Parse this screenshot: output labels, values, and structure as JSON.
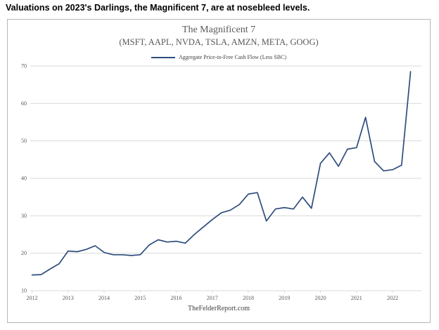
{
  "headline": "Valuations on 2023's Darlings, the Magnificent 7, are at nosebleed levels.",
  "chart": {
    "title": "The Magnificent 7",
    "subtitle": "(MSFT, AAPL, NVDA, TSLA, AMZN, META, GOOG)",
    "legend": "Aggregate Price-to-Free Cash Flow (Less SBC)",
    "footer": "TheFelderReport.com",
    "line_color": "#2e4d7e",
    "grid_color": "#d9d9d9",
    "label_color": "#595959"
  },
  "chart_data": {
    "type": "line",
    "title": "The Magnificent 7",
    "subtitle": "(MSFT, AAPL, NVDA, TSLA, AMZN, META, GOOG)",
    "xlabel": "",
    "ylabel": "",
    "xlim": [
      2011.95,
      2022.8
    ],
    "ylim": [
      10,
      70
    ],
    "yticks": [
      10,
      20,
      30,
      40,
      50,
      60,
      70
    ],
    "xticks": [
      2012,
      2013,
      2014,
      2015,
      2016,
      2017,
      2018,
      2019,
      2020,
      2021,
      2022
    ],
    "grid": "horizontal",
    "legend_position": "top",
    "series": [
      {
        "name": "Aggregate Price-to-Free Cash Flow (Less SBC)",
        "x": [
          2012.0,
          2012.25,
          2012.5,
          2012.75,
          2013.0,
          2013.25,
          2013.5,
          2013.75,
          2014.0,
          2014.25,
          2014.5,
          2014.75,
          2015.0,
          2015.25,
          2015.5,
          2015.75,
          2016.0,
          2016.25,
          2016.5,
          2016.75,
          2017.0,
          2017.25,
          2017.5,
          2017.75,
          2018.0,
          2018.25,
          2018.5,
          2018.75,
          2019.0,
          2019.25,
          2019.5,
          2019.75,
          2020.0,
          2020.25,
          2020.5,
          2020.75,
          2021.0,
          2021.25,
          2021.5,
          2021.75,
          2022.0,
          2022.25,
          2022.5
        ],
        "values": [
          14.2,
          14.3,
          15.8,
          17.2,
          20.6,
          20.4,
          21.0,
          22.0,
          20.2,
          19.6,
          19.6,
          19.4,
          19.6,
          22.2,
          23.6,
          23.0,
          23.2,
          22.7,
          25.0,
          27.0,
          29.0,
          30.8,
          31.5,
          33.0,
          35.8,
          36.2,
          28.6,
          31.8,
          32.2,
          31.8,
          35.0,
          32.0,
          44.0,
          46.8,
          43.2,
          47.8,
          48.2,
          56.3,
          44.5,
          42.0,
          42.3,
          43.5,
          68.5
        ]
      }
    ]
  }
}
